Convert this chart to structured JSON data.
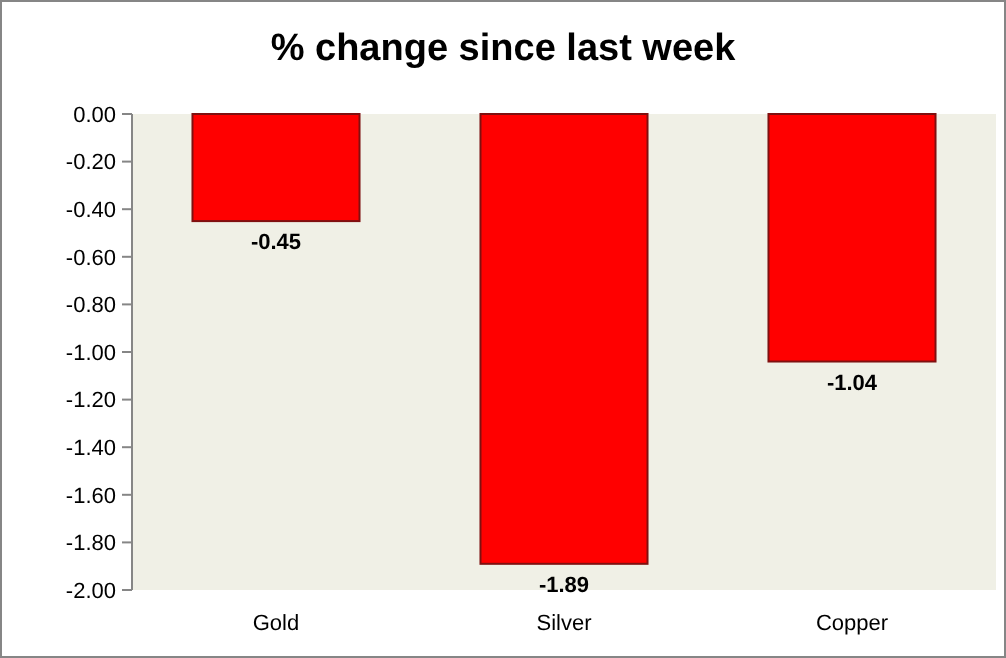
{
  "chart_data": {
    "type": "bar",
    "title": "% change since last week",
    "categories": [
      "Gold",
      "Silver",
      "Copper"
    ],
    "values": [
      -0.45,
      -1.89,
      -1.04
    ],
    "color": "#ff0000",
    "data_labels": true,
    "grid": false,
    "ylim": [
      -2,
      0
    ],
    "yticks": [
      {
        "value": 0,
        "label": "0.00"
      },
      {
        "value": -0.2,
        "label": "-0.20"
      },
      {
        "value": -0.4,
        "label": "-0.40"
      },
      {
        "value": -0.6,
        "label": "-0.60"
      },
      {
        "value": -0.8,
        "label": "-0.80"
      },
      {
        "value": -1,
        "label": "-1.00"
      },
      {
        "value": -1.2,
        "label": "-1.20"
      },
      {
        "value": -1.4,
        "label": "-1.40"
      },
      {
        "value": -1.6,
        "label": "-1.60"
      },
      {
        "value": -1.8,
        "label": "-1.80"
      },
      {
        "value": -2,
        "label": "-2.00"
      }
    ]
  }
}
